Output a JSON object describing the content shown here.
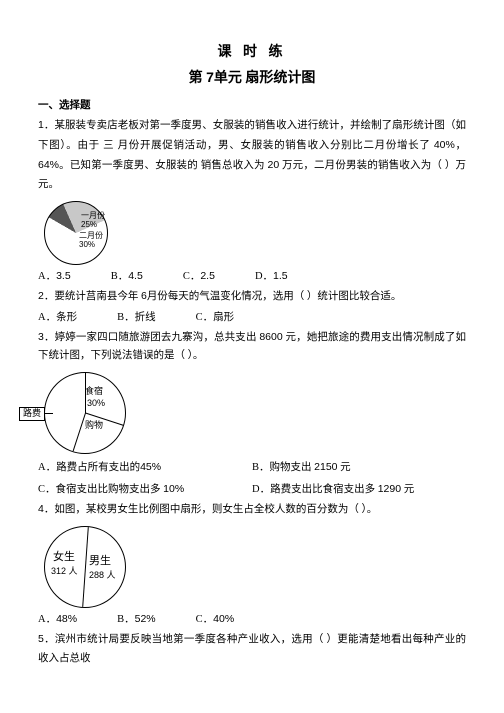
{
  "titles": {
    "line1": "课 时  练",
    "line2_pre": "第 ",
    "line2_num": "7",
    "line2_suf": "单元 扇形统计图"
  },
  "section": "一、选择题",
  "q1": {
    "num": "1．",
    "text_a": "某服装专卖店老板对第一季度男、女服装的销售收入进行统计，并绘制了扇形统计图（如下图）。由于",
    "text_b": "三 月份开展促销活动，男、女服装的销售收入分别比二月份增长了 ",
    "pc1": "40%",
    "sep1": "，",
    "pc2": "64%",
    "sep2": "。",
    "text_c": "已知第一季度男、女服装的 销售总收入为 ",
    "v20": "20",
    "wan": " 万元，二月份男装的销售收入为（  ）万元。",
    "pie": {
      "label_a": "一月份",
      "label_a2": "25%",
      "label_b": "二月份",
      "label_b2": "30%"
    },
    "opts": {
      "A": "3.5",
      "B": "4.5",
      "C": "2.5",
      "D": "1.5"
    }
  },
  "q2": {
    "num": "2．",
    "text_a": "要统计莒南县今年 ",
    "m6": "6",
    "text_b": "月份每天的气温变化情况，选用（   ）统计图比较合适。",
    "opts": {
      "A": "条形",
      "B": "折线",
      "C": "扇形"
    }
  },
  "q3": {
    "num": "3．",
    "text_a": "婷婷一家四口随旅游团去九寨沟，总共支出 ",
    "v": "8600",
    "unit": "元，她把旅途的费用支出情况制成了如下统计图，下列说法错误的是（   ）。",
    "pie": {
      "food": "食宿",
      "food_pct": "30%",
      "shop": "购物",
      "road": "路费"
    },
    "opts": {
      "A": "路费占所有支出的",
      "A_v": "45%",
      "B": "购物支出 ",
      "B_v": "2150",
      "B_u": "元",
      "C": "食宿支出比购物支出多 ",
      "C_v": "10%",
      "D": "路费支出比食宿支出多 ",
      "D_v": "1290",
      "D_u": "元"
    }
  },
  "q4": {
    "num": "4．",
    "text": "如图，某校男女生比例图中扇形，则女生占全校人数的百分数为（    ）。",
    "pie": {
      "girl": "女生",
      "girl_n": "312 人",
      "boy": "男生",
      "boy_n": "288 人"
    },
    "opts": {
      "A": "48%",
      "B": "52%",
      "C": "40%"
    }
  },
  "q5": {
    "num": "5．",
    "text": "滨州市统计局要反映当地第一季度各种产业收入，选用（    ）更能清楚地看出每种产业的收入占总收"
  }
}
